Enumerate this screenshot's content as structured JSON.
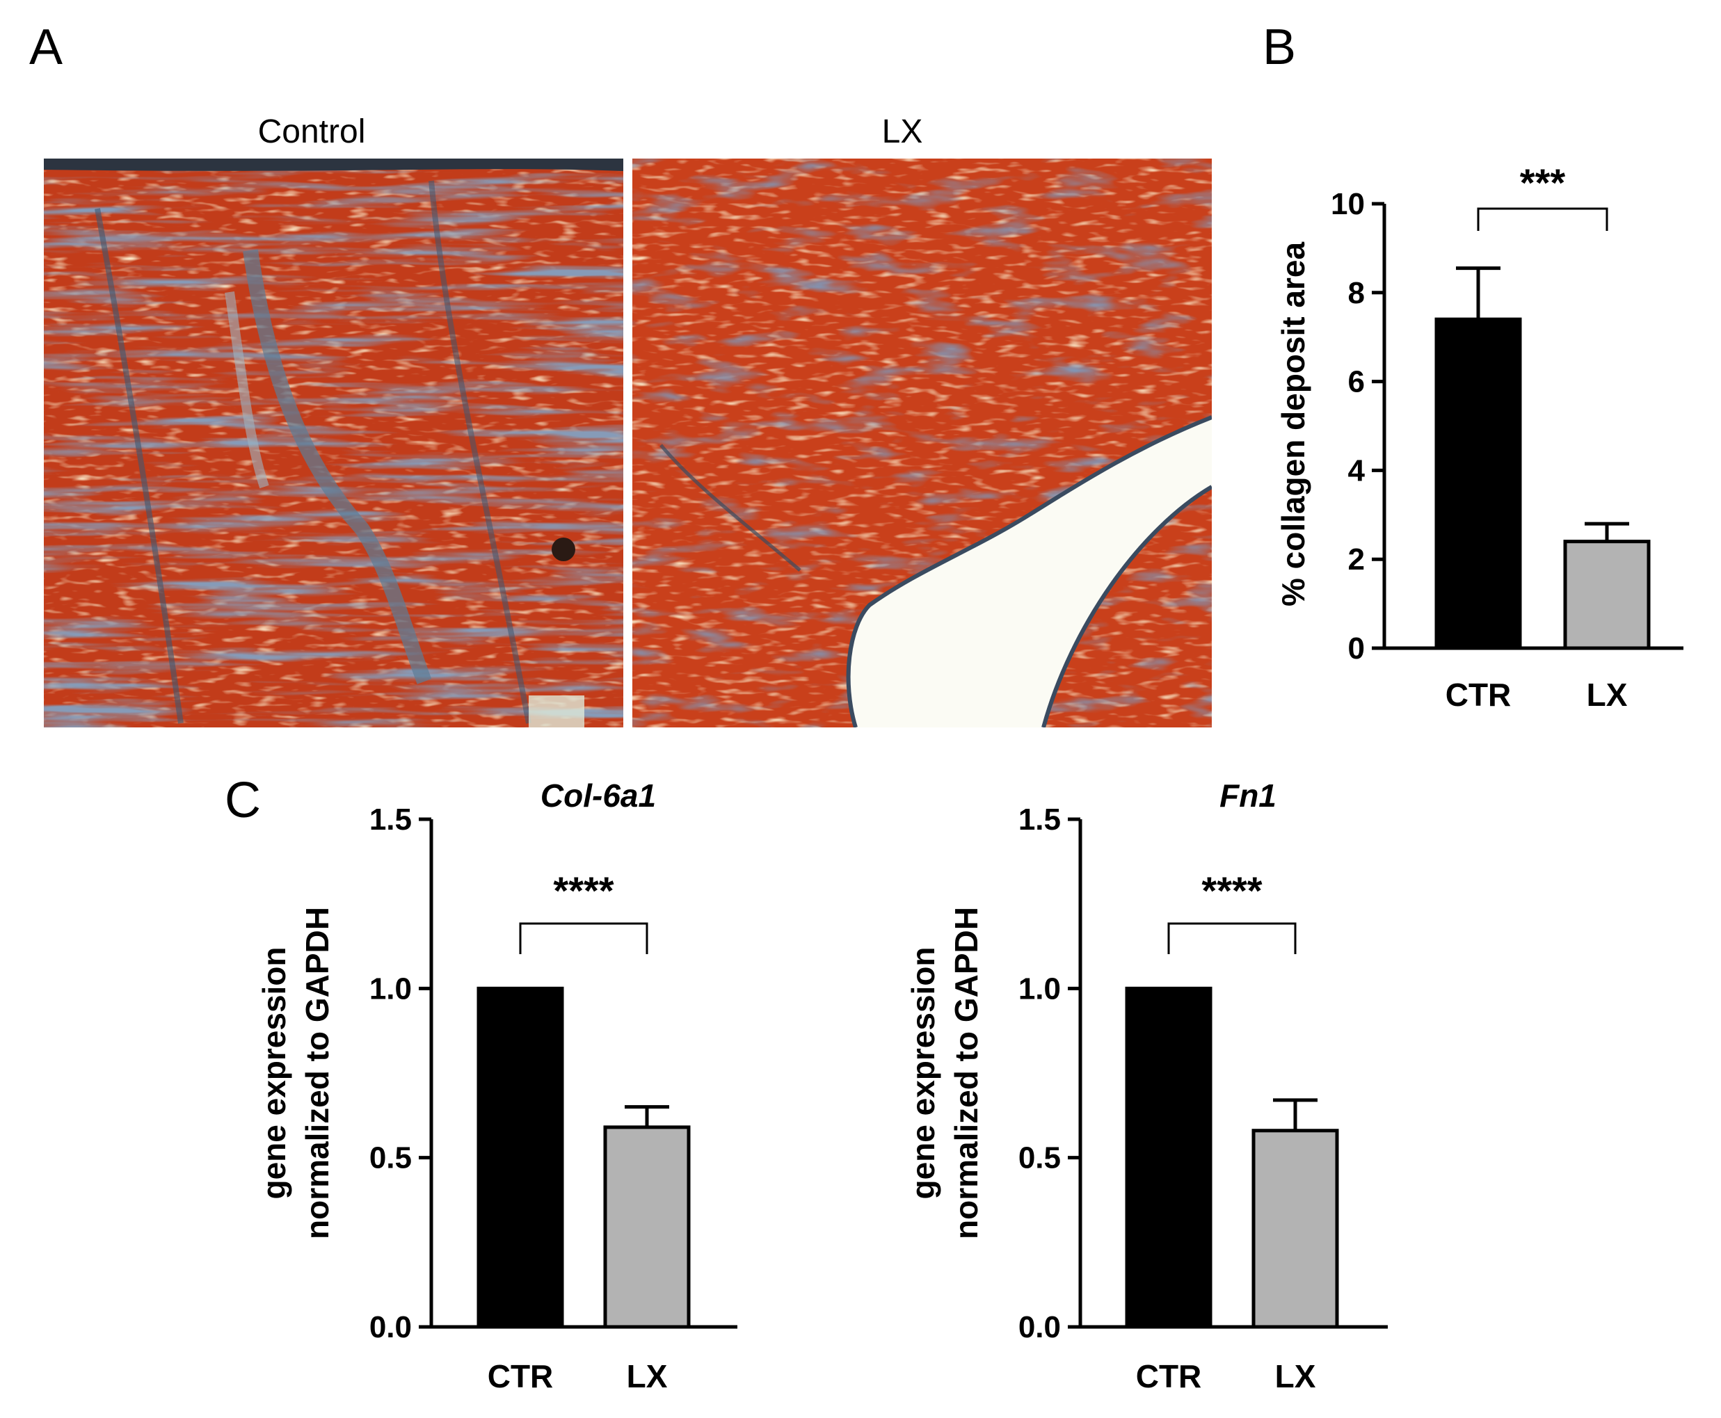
{
  "panels": {
    "a": {
      "letter": "A",
      "left_caption": "Control",
      "right_caption": "LX"
    },
    "b": {
      "letter": "B"
    },
    "c": {
      "letter": "C"
    }
  },
  "colors": {
    "ctr_bar": "#000000",
    "lx_bar": "#b3b3b3",
    "tissue_red": "#c8401c",
    "collagen_blue": "#3c5a7a",
    "background_white": "#f7f6ee"
  },
  "chart_data": [
    {
      "id": "B",
      "type": "bar",
      "title": "",
      "xlabel": "",
      "ylabel": "% collagen deposit area",
      "categories": [
        "CTR",
        "LX"
      ],
      "values": [
        7.4,
        2.4
      ],
      "errors": [
        1.15,
        0.4
      ],
      "bar_colors": [
        "#000000",
        "#b3b3b3"
      ],
      "ylim": [
        0,
        10
      ],
      "yticks": [
        "0",
        "2",
        "4",
        "6",
        "8",
        "10"
      ],
      "significance": "***",
      "grid": false
    },
    {
      "id": "C1",
      "type": "bar",
      "title": "Col-6a1",
      "xlabel": "",
      "ylabel": [
        "gene expression",
        "normalized to GAPDH"
      ],
      "categories": [
        "CTR",
        "LX"
      ],
      "values": [
        1.0,
        0.59
      ],
      "errors": [
        0,
        0.06
      ],
      "bar_colors": [
        "#000000",
        "#b3b3b3"
      ],
      "ylim": [
        0,
        1.5
      ],
      "yticks": [
        "0.0",
        "0.5",
        "1.0",
        "1.5"
      ],
      "significance": "****",
      "grid": false
    },
    {
      "id": "C2",
      "type": "bar",
      "title": "Fn1",
      "xlabel": "",
      "ylabel": [
        "gene expression",
        "normalized to GAPDH"
      ],
      "categories": [
        "CTR",
        "LX"
      ],
      "values": [
        1.0,
        0.58
      ],
      "errors": [
        0,
        0.09
      ],
      "bar_colors": [
        "#000000",
        "#b3b3b3"
      ],
      "ylim": [
        0,
        1.5
      ],
      "yticks": [
        "0.0",
        "0.5",
        "1.0",
        "1.5"
      ],
      "significance": "****",
      "grid": false
    }
  ]
}
